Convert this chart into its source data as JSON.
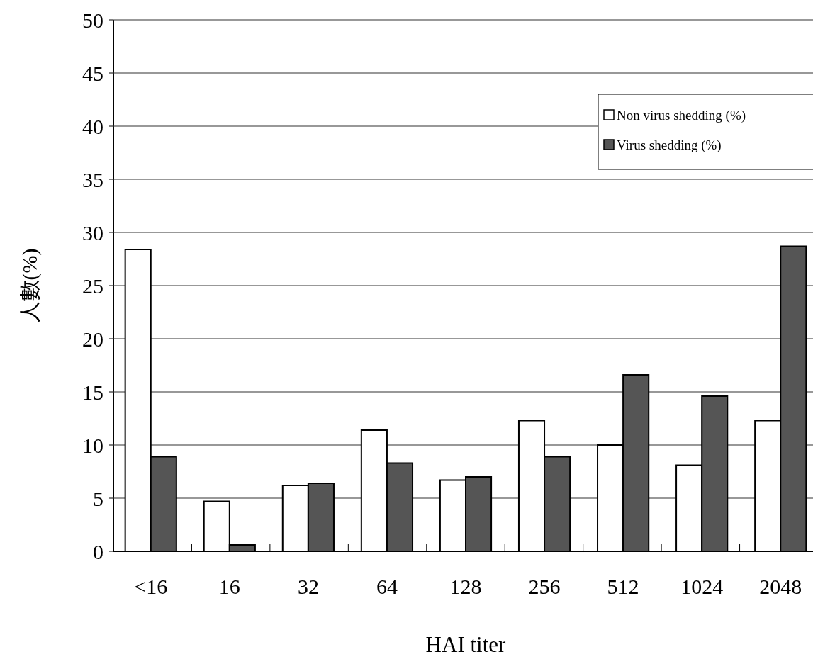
{
  "chart_data": {
    "type": "bar",
    "xlabel": "HAI titer",
    "ylabel": "人數(%)",
    "categories": [
      "<16",
      "16",
      "32",
      "64",
      "128",
      "256",
      "512",
      "1024",
      "2048"
    ],
    "series": [
      {
        "name": "Non virus shedding (%)",
        "color": "#ffffff",
        "values": [
          28.4,
          4.7,
          6.2,
          11.4,
          6.7,
          12.3,
          10.0,
          8.1,
          12.3
        ]
      },
      {
        "name": "Virus shedding (%)",
        "color": "#555555",
        "values": [
          8.9,
          0.6,
          6.4,
          8.3,
          7.0,
          8.9,
          16.6,
          14.6,
          28.7
        ]
      }
    ],
    "ylim": [
      0,
      50
    ],
    "yticks": [
      0,
      5,
      10,
      15,
      20,
      25,
      30,
      35,
      40,
      45,
      50
    ],
    "grid": "y",
    "legend": "top right"
  }
}
